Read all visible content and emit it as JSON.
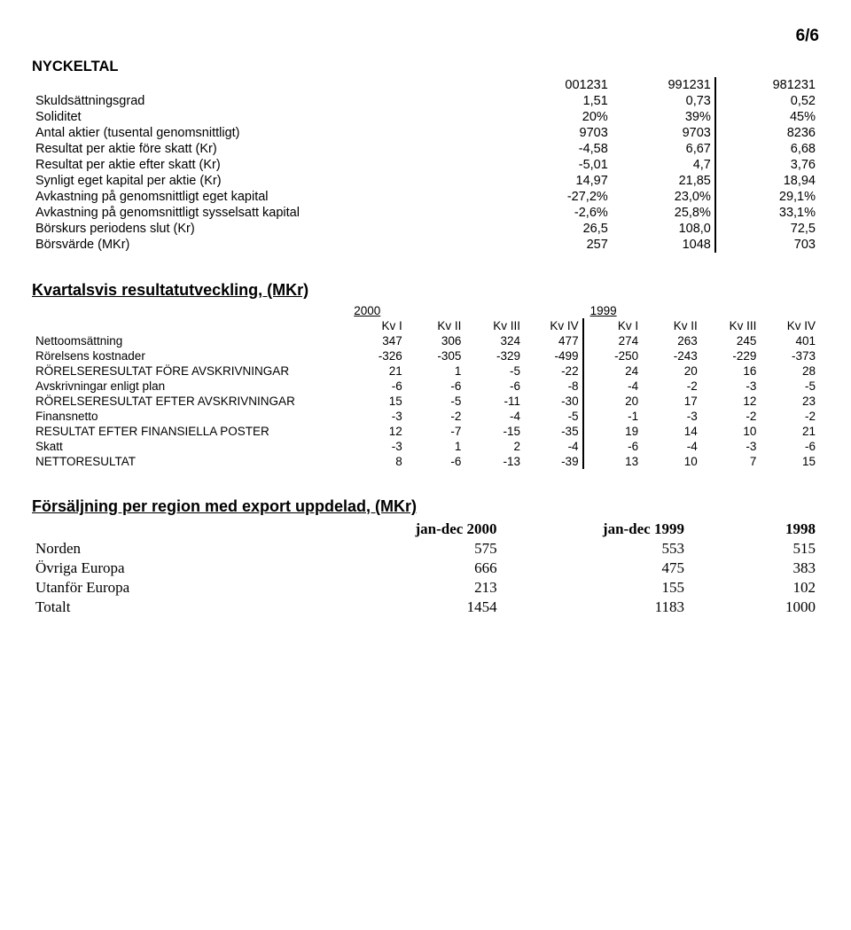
{
  "page_number": "6/6",
  "nyckeltal": {
    "title": "NYCKELTAL",
    "headers": [
      "001231",
      "991231",
      "981231"
    ],
    "rows": [
      {
        "label": "Skuldsättningsgrad",
        "v": [
          "1,51",
          "0,73",
          "0,52"
        ]
      },
      {
        "label": "Soliditet",
        "v": [
          "20%",
          "39%",
          "45%"
        ]
      },
      {
        "label": "Antal aktier (tusental genomsnittligt)",
        "v": [
          "9703",
          "9703",
          "8236"
        ]
      },
      {
        "label": "Resultat per aktie före skatt (Kr)",
        "v": [
          "-4,58",
          "6,67",
          "6,68"
        ]
      },
      {
        "label": "Resultat per aktie efter skatt (Kr)",
        "v": [
          "-5,01",
          "4,7",
          "3,76"
        ]
      },
      {
        "label": "Synligt eget kapital per aktie (Kr)",
        "v": [
          "14,97",
          "21,85",
          "18,94"
        ]
      },
      {
        "label": "Avkastning på genomsnittligt eget kapital",
        "v": [
          "-27,2%",
          "23,0%",
          "29,1%"
        ]
      },
      {
        "label": "Avkastning på genomsnittligt sysselsatt kapital",
        "v": [
          "-2,6%",
          "25,8%",
          "33,1%"
        ]
      },
      {
        "label": "Börskurs periodens slut (Kr)",
        "v": [
          "26,5",
          "108,0",
          "72,5"
        ]
      },
      {
        "label": "Börsvärde (MKr)",
        "v": [
          "257",
          "1048",
          "703"
        ]
      }
    ]
  },
  "kvartal": {
    "title": "Kvartalsvis resultatutveckling, (MKr)",
    "year_headers": [
      "2000",
      "1999"
    ],
    "col_headers": [
      "Kv I",
      "Kv II",
      "Kv III",
      "Kv IV",
      "Kv I",
      "Kv II",
      "Kv III",
      "Kv IV"
    ],
    "rows": [
      {
        "label": "Nettoomsättning",
        "v": [
          "347",
          "306",
          "324",
          "477",
          "274",
          "263",
          "245",
          "401"
        ]
      },
      {
        "label": "Rörelsens kostnader",
        "v": [
          "-326",
          "-305",
          "-329",
          "-499",
          "-250",
          "-243",
          "-229",
          "-373"
        ]
      },
      {
        "label": "RÖRELSERESULTAT FÖRE AVSKRIVNINGAR",
        "v": [
          "21",
          "1",
          "-5",
          "-22",
          "24",
          "20",
          "16",
          "28"
        ]
      },
      {
        "label": "Avskrivningar enligt plan",
        "v": [
          "-6",
          "-6",
          "-6",
          "-8",
          "-4",
          "-2",
          "-3",
          "-5"
        ]
      },
      {
        "label": "RÖRELSERESULTAT EFTER AVSKRIVNINGAR",
        "v": [
          "15",
          "-5",
          "-11",
          "-30",
          "20",
          "17",
          "12",
          "23"
        ]
      },
      {
        "label": "Finansnetto",
        "v": [
          "-3",
          "-2",
          "-4",
          "-5",
          "-1",
          "-3",
          "-2",
          "-2"
        ]
      },
      {
        "label": "RESULTAT EFTER FINANSIELLA POSTER",
        "v": [
          "12",
          "-7",
          "-15",
          "-35",
          "19",
          "14",
          "10",
          "21"
        ]
      },
      {
        "label": "Skatt",
        "v": [
          "-3",
          "1",
          "2",
          "-4",
          "-6",
          "-4",
          "-3",
          "-6"
        ]
      },
      {
        "label": "NETTORESULTAT",
        "v": [
          "8",
          "-6",
          "-13",
          "-39",
          "13",
          "10",
          "7",
          "15"
        ]
      }
    ]
  },
  "region": {
    "title": "Försäljning per region med export uppdelad, (MKr)",
    "headers": [
      "jan-dec 2000",
      "jan-dec 1999",
      "1998"
    ],
    "rows": [
      {
        "label": "Norden",
        "v": [
          "575",
          "553",
          "515"
        ]
      },
      {
        "label": "Övriga Europa",
        "v": [
          "666",
          "475",
          "383"
        ]
      },
      {
        "label": "Utanför Europa",
        "v": [
          "213",
          "155",
          "102"
        ]
      },
      {
        "label": "Totalt",
        "v": [
          "1454",
          "1183",
          "1000"
        ]
      }
    ]
  }
}
